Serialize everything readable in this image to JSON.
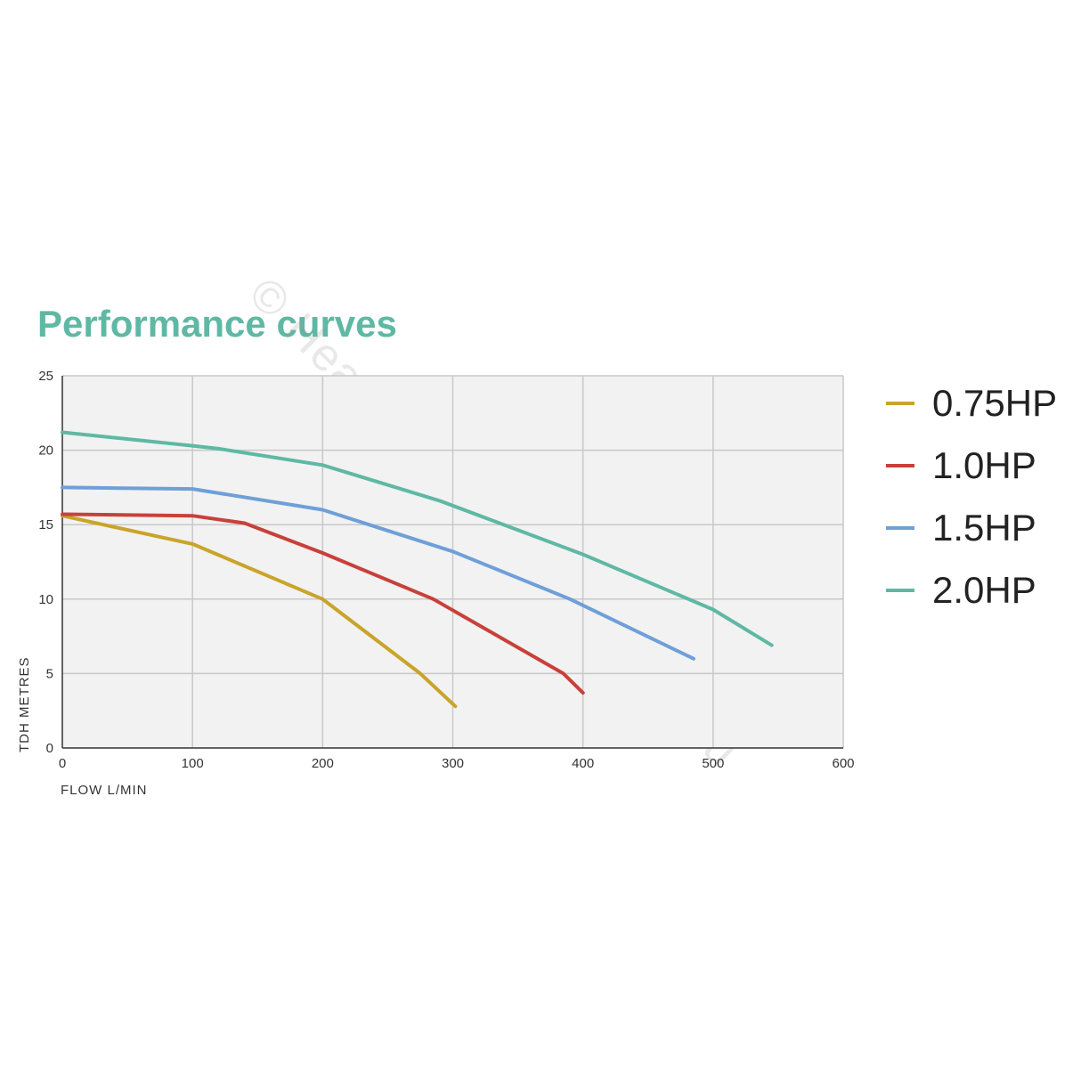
{
  "chart_data": {
    "type": "line",
    "title": "Performance curves",
    "xlabel": "FLOW L/MIN",
    "ylabel": "TDH METRES",
    "xlim": [
      0,
      600
    ],
    "ylim": [
      0,
      25
    ],
    "x_ticks": [
      "0",
      "100",
      "200",
      "300",
      "400",
      "500",
      "600"
    ],
    "y_ticks": [
      "0",
      "5",
      "10",
      "15",
      "20",
      "25"
    ],
    "grid": true,
    "legend_position": "right",
    "series": [
      {
        "name": "0.75HP",
        "color": "#c9a42a",
        "points": [
          [
            0,
            15.6
          ],
          [
            100,
            13.7
          ],
          [
            200,
            10.0
          ],
          [
            275,
            5.0
          ],
          [
            302,
            2.8
          ]
        ]
      },
      {
        "name": "1.0HP",
        "color": "#c9403a",
        "points": [
          [
            0,
            15.7
          ],
          [
            100,
            15.6
          ],
          [
            140,
            15.1
          ],
          [
            200,
            13.1
          ],
          [
            285,
            10.0
          ],
          [
            385,
            5.0
          ],
          [
            400,
            3.7
          ]
        ]
      },
      {
        "name": "1.5HP",
        "color": "#6f9fd8",
        "points": [
          [
            0,
            17.5
          ],
          [
            100,
            17.4
          ],
          [
            200,
            16.0
          ],
          [
            300,
            13.2
          ],
          [
            390,
            10.0
          ],
          [
            485,
            6.0
          ]
        ]
      },
      {
        "name": "2.0HP",
        "color": "#5fb8a4",
        "points": [
          [
            0,
            21.2
          ],
          [
            100,
            20.3
          ],
          [
            120,
            20.1
          ],
          [
            200,
            19.0
          ],
          [
            290,
            16.6
          ],
          [
            400,
            13.0
          ],
          [
            500,
            9.3
          ],
          [
            545,
            6.9
          ]
        ]
      }
    ]
  },
  "watermark": "© HeaterAndSpaParts.com.au"
}
